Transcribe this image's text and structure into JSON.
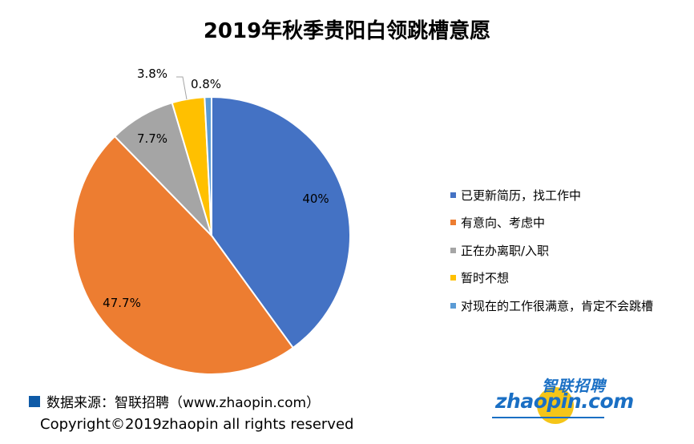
{
  "chart_data": {
    "type": "pie",
    "title": "2019年秋季贵阳白领跳槽意愿",
    "slices": [
      {
        "label": "已更新简历，找工作中",
        "value": 40,
        "display": "40%",
        "color": "#4472c4"
      },
      {
        "label": "有意向、考虑中",
        "value": 47.7,
        "display": "47.7%",
        "color": "#ed7d31"
      },
      {
        "label": "正在办离职/入职",
        "value": 7.7,
        "display": "7.7%",
        "color": "#a5a5a5"
      },
      {
        "label": "暂时不想",
        "value": 3.8,
        "display": "3.8%",
        "color": "#ffc000"
      },
      {
        "label": "对现在的工作很满意，肯定不会跳槽",
        "value": 0.8,
        "display": "0.8%",
        "color": "#5b9bd5"
      }
    ],
    "legend_position": "right"
  },
  "footer": {
    "source": "数据来源：智联招聘（www.zhaopin.com）",
    "copyright": "Copyright©2019zhaopin all rights reserved"
  },
  "logo": {
    "cn": "智联招聘",
    "en": "zhaopin.com"
  },
  "colors": {
    "source_marker": "#0e5aa7",
    "logo_blue": "#1a6fc4",
    "logo_yellow": "#f5c518"
  }
}
